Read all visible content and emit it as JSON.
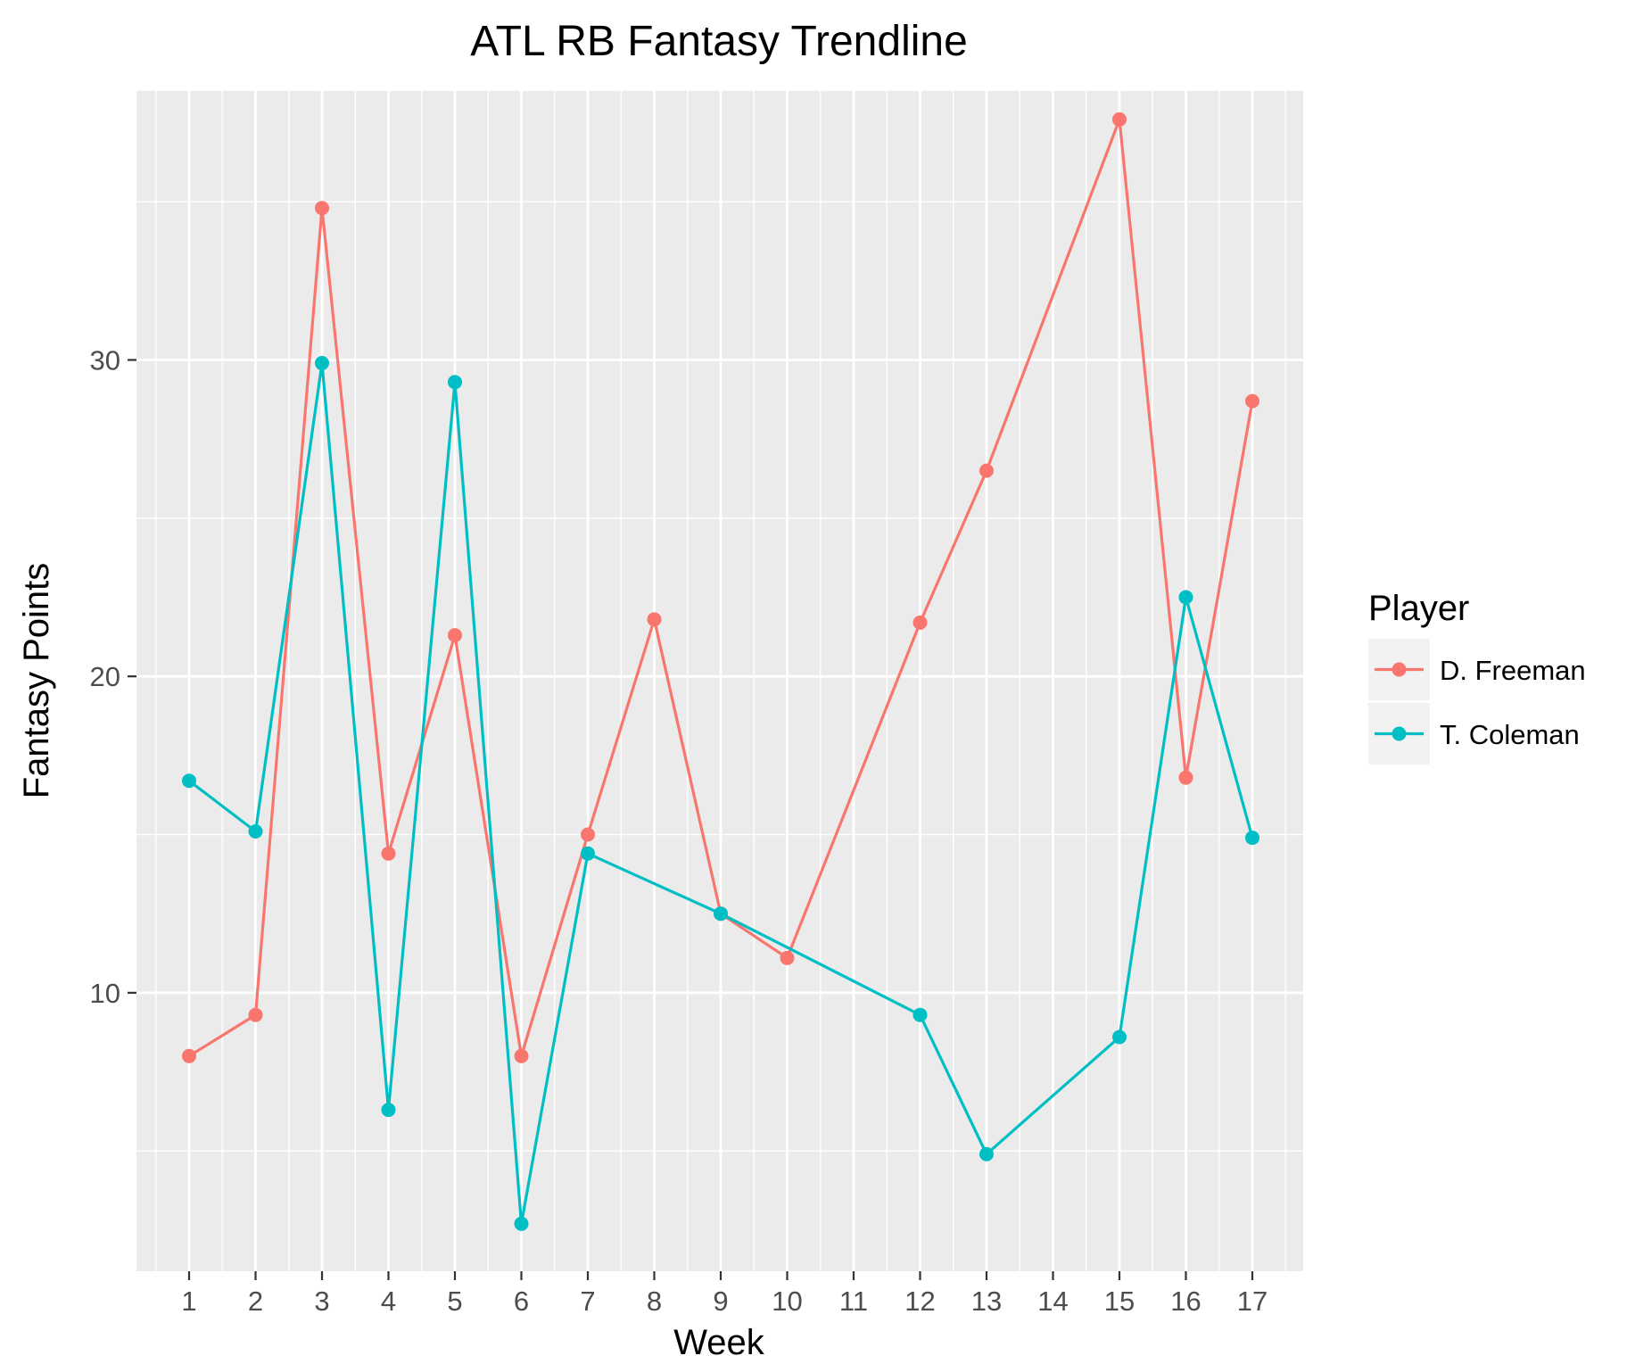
{
  "chart_data": {
    "type": "line",
    "title": "ATL RB Fantasy Trendline",
    "xlabel": "Week",
    "ylabel": "Fantasy Points",
    "x_categories": [
      "1",
      "2",
      "3",
      "4",
      "5",
      "6",
      "7",
      "8",
      "9",
      "10",
      "11",
      "12",
      "13",
      "14",
      "15",
      "16",
      "17"
    ],
    "y_ticks": [
      10,
      20,
      30
    ],
    "ylim": [
      1.2,
      38.5
    ],
    "grid": true,
    "legend": {
      "title": "Player",
      "position": "right"
    },
    "series": [
      {
        "name": "D. Freeman",
        "color": "#F8766D",
        "points": [
          {
            "x": "1",
            "y": 8.0
          },
          {
            "x": "2",
            "y": 9.3
          },
          {
            "x": "3",
            "y": 34.8
          },
          {
            "x": "4",
            "y": 14.4
          },
          {
            "x": "5",
            "y": 21.3
          },
          {
            "x": "6",
            "y": 8.0
          },
          {
            "x": "7",
            "y": 15.0
          },
          {
            "x": "8",
            "y": 21.8
          },
          {
            "x": "9",
            "y": 12.5
          },
          {
            "x": "10",
            "y": 11.1
          },
          {
            "x": "12",
            "y": 21.7
          },
          {
            "x": "13",
            "y": 26.5
          },
          {
            "x": "15",
            "y": 37.6
          },
          {
            "x": "16",
            "y": 16.8
          },
          {
            "x": "17",
            "y": 28.7
          }
        ]
      },
      {
        "name": "T. Coleman",
        "color": "#00BFC4",
        "points": [
          {
            "x": "1",
            "y": 16.7
          },
          {
            "x": "2",
            "y": 15.1
          },
          {
            "x": "3",
            "y": 29.9
          },
          {
            "x": "4",
            "y": 6.3
          },
          {
            "x": "5",
            "y": 29.3
          },
          {
            "x": "6",
            "y": 2.7
          },
          {
            "x": "7",
            "y": 14.4
          },
          {
            "x": "9",
            "y": 12.5
          },
          {
            "x": "12",
            "y": 9.3
          },
          {
            "x": "13",
            "y": 4.9
          },
          {
            "x": "15",
            "y": 8.6
          },
          {
            "x": "16",
            "y": 22.5
          },
          {
            "x": "17",
            "y": 14.9
          }
        ]
      }
    ]
  }
}
